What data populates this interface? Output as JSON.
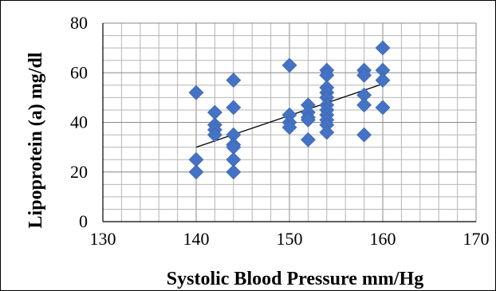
{
  "chart_data": {
    "type": "scatter",
    "xlabel": "Systolic Blood Pressure mm/Hg",
    "ylabel": "Lipoprotein (a) mg/dl",
    "xlim": [
      130,
      170
    ],
    "ylim": [
      0,
      80
    ],
    "x_ticks": [
      130,
      140,
      150,
      160,
      170
    ],
    "y_ticks": [
      0,
      20,
      40,
      60,
      80
    ],
    "grid": true,
    "minor_grid": true,
    "marker": "diamond",
    "marker_color": "#4472C4",
    "points": [
      [
        140,
        52
      ],
      [
        140,
        25
      ],
      [
        140,
        20
      ],
      [
        142,
        44
      ],
      [
        142,
        39
      ],
      [
        142,
        37
      ],
      [
        142,
        35
      ],
      [
        144,
        57
      ],
      [
        144,
        46
      ],
      [
        144,
        35
      ],
      [
        144,
        31
      ],
      [
        144,
        30
      ],
      [
        144,
        25
      ],
      [
        144,
        20
      ],
      [
        150,
        63
      ],
      [
        150,
        43
      ],
      [
        150,
        40
      ],
      [
        150,
        38
      ],
      [
        152,
        47
      ],
      [
        152,
        44
      ],
      [
        152,
        42
      ],
      [
        152,
        41
      ],
      [
        152,
        33
      ],
      [
        154,
        61
      ],
      [
        154,
        59
      ],
      [
        154,
        54
      ],
      [
        154,
        52
      ],
      [
        154,
        50
      ],
      [
        154,
        47
      ],
      [
        154,
        45
      ],
      [
        154,
        43
      ],
      [
        154,
        41
      ],
      [
        154,
        39
      ],
      [
        154,
        36
      ],
      [
        158,
        61
      ],
      [
        158,
        59
      ],
      [
        158,
        51
      ],
      [
        158,
        47
      ],
      [
        158,
        35
      ],
      [
        160,
        70
      ],
      [
        160,
        61
      ],
      [
        160,
        57
      ],
      [
        160,
        46
      ]
    ],
    "trendline": {
      "x": [
        140,
        160
      ],
      "y": [
        30,
        55.5
      ],
      "color": "#000000"
    }
  }
}
